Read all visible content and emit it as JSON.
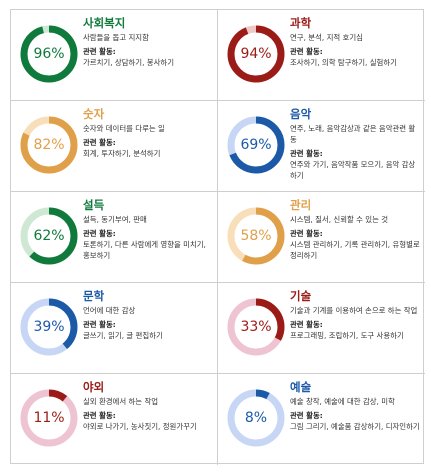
{
  "related_label": "관련 활동:",
  "cards": [
    {
      "title": "사회복지",
      "percent": "96%",
      "value": 96,
      "desc": "사람들을 돕고 지지함",
      "activities": "가르치기, 상담하기, 봉사하기",
      "color": "#0f7a3c",
      "track": "#cfe8d4"
    },
    {
      "title": "과학",
      "percent": "94%",
      "value": 94,
      "desc": "연구, 분석, 지적 호기심",
      "activities": "조사하기, 의학 탐구하기, 실험하기",
      "color": "#9b1c17",
      "track": "#f0c9c6"
    },
    {
      "title": "숫자",
      "percent": "82%",
      "value": 82,
      "desc": "숫자와 데이터를 다루는 일",
      "activities": "회계, 투자하기, 분석하기",
      "color": "#e0a04a",
      "track": "#f8dfba"
    },
    {
      "title": "음악",
      "percent": "69%",
      "value": 69,
      "desc": "연주, 노래, 음악감상과 같은 음악관련 활동",
      "activities": "연주와 가기, 음악작품 모으기, 음악 감상하기",
      "color": "#1c5aa8",
      "track": "#c6d6f4"
    },
    {
      "title": "설득",
      "percent": "62%",
      "value": 62,
      "desc": "설득, 동기부여, 판매",
      "activities": "토론하기, 다른 사람에게 영향을 미치기, 홍보하기",
      "color": "#0f7a3c",
      "track": "#cfe8d4"
    },
    {
      "title": "관리",
      "percent": "58%",
      "value": 58,
      "desc": "시스템, 질서, 신뢰할 수 있는 것",
      "activities": "시스템 관리하기, 기록 관리하기, 유형별로 정리하기",
      "color": "#e0a04a",
      "track": "#f8dfba"
    },
    {
      "title": "문학",
      "percent": "39%",
      "value": 39,
      "desc": "언어에 대한 감상",
      "activities": "글쓰기, 읽기, 글 편집하기",
      "color": "#1c5aa8",
      "track": "#c6d6f4"
    },
    {
      "title": "기술",
      "percent": "33%",
      "value": 33,
      "desc": "기술과 기계를 이용하여 손으로 하는 작업",
      "activities": "프로그래밍, 조립하기, 도구 사용하기",
      "color": "#9b1c17",
      "track": "#eec4d3"
    },
    {
      "title": "야외",
      "percent": "11%",
      "value": 11,
      "desc": "실외 환경에서 하는 작업",
      "activities": "야외로 나가기, 농사짓기, 정원가꾸기",
      "color": "#9b1c17",
      "track": "#eec4d3"
    },
    {
      "title": "예술",
      "percent": "8%",
      "value": 8,
      "desc": "예술 창작, 예술에 대한 감상, 미학",
      "activities": "그림 그리기, 예술품 감상하기, 디자인하기",
      "color": "#1c5aa8",
      "track": "#c6d6f4"
    }
  ]
}
